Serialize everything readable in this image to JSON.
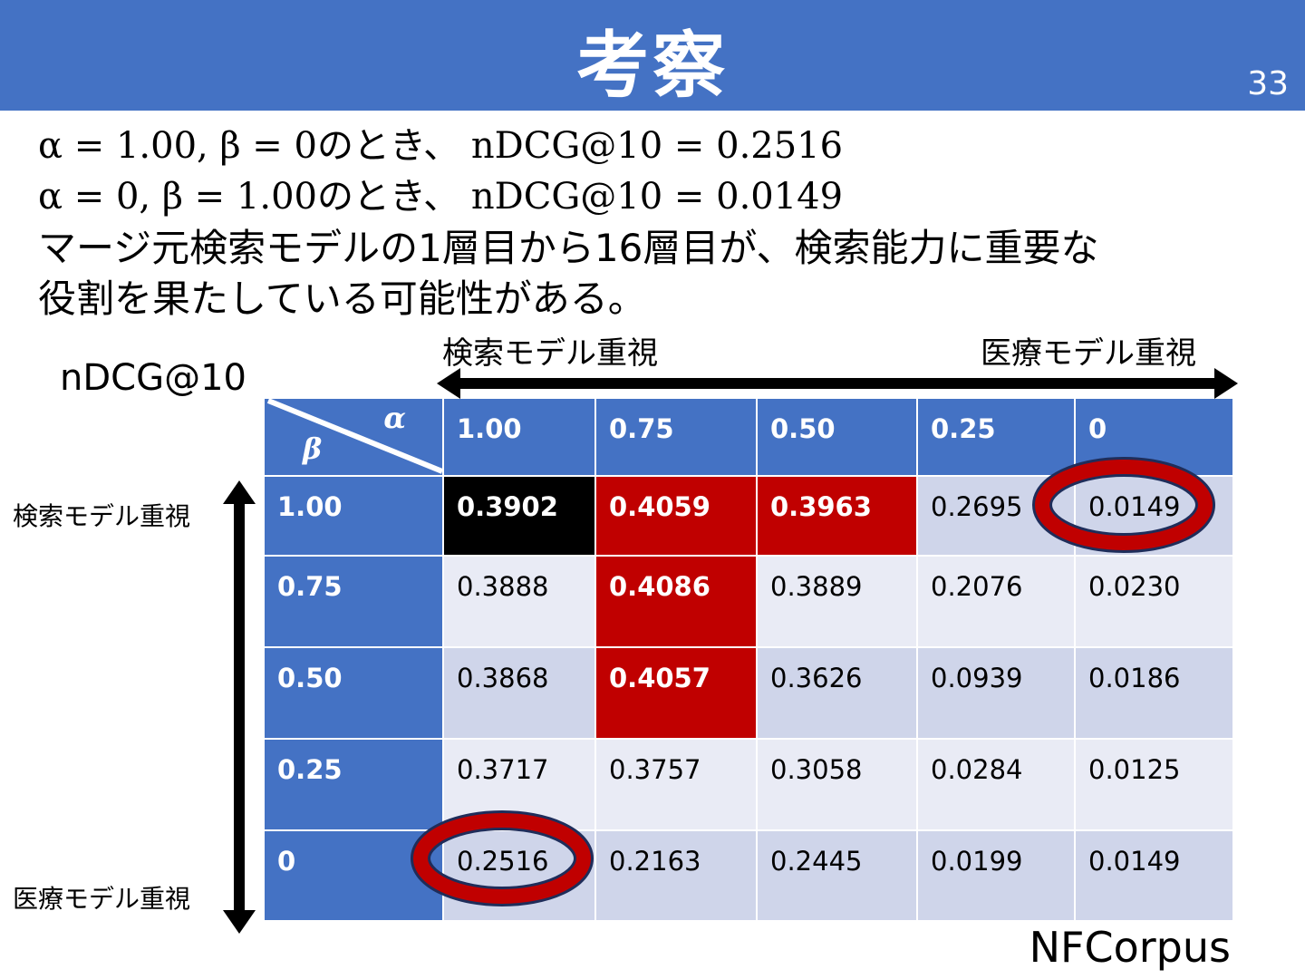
{
  "slide": {
    "title": "考察",
    "page_number": "33"
  },
  "body": {
    "formula_1": "α = 1.00, β  = 0のとき、 nDCG@10 = 0.2516",
    "formula_2": "α = 0, β = 1.00のとき、 nDCG@10 = 0.0149",
    "line_1": "マージ元検索モデルの1層目から16層目が、検索能力に重要な",
    "line_2": "役割を果たしている可能性がある。"
  },
  "figure": {
    "metric_label": "nDCG@10",
    "top_left_label": "検索モデル重視",
    "top_right_label": "医療モデル重視",
    "side_top_label": "検索モデル重視",
    "side_bottom_label": "医療モデル重視",
    "corner_alpha": "α",
    "corner_beta": "β",
    "dataset": "NFCorpus",
    "highlight_color": "#c00000",
    "header_color": "#4472c4"
  },
  "table": {
    "alpha_values": [
      "1.00",
      "0.75",
      "0.50",
      "0.25",
      "0"
    ],
    "rows": [
      {
        "beta": "1.00",
        "cells": [
          "0.3902",
          "0.4059",
          "0.3963",
          "0.2695",
          "0.0149"
        ],
        "styles": [
          "black",
          "red",
          "red",
          "odd",
          "odd"
        ]
      },
      {
        "beta": "0.75",
        "cells": [
          "0.3888",
          "0.4086",
          "0.3889",
          "0.2076",
          "0.0230"
        ],
        "styles": [
          "even",
          "red",
          "even",
          "even",
          "even"
        ]
      },
      {
        "beta": "0.50",
        "cells": [
          "0.3868",
          "0.4057",
          "0.3626",
          "0.0939",
          "0.0186"
        ],
        "styles": [
          "odd",
          "red",
          "odd",
          "odd",
          "odd"
        ]
      },
      {
        "beta": "0.25",
        "cells": [
          "0.3717",
          "0.3757",
          "0.3058",
          "0.0284",
          "0.0125"
        ],
        "styles": [
          "even",
          "even",
          "even",
          "even",
          "even"
        ]
      },
      {
        "beta": "0",
        "cells": [
          "0.2516",
          "0.2163",
          "0.2445",
          "0.0199",
          "0.0149"
        ],
        "styles": [
          "odd",
          "odd",
          "odd",
          "odd",
          "odd"
        ]
      }
    ],
    "circled_cells": [
      "β=1.00, α=0",
      "β=0, α=1.00"
    ]
  }
}
